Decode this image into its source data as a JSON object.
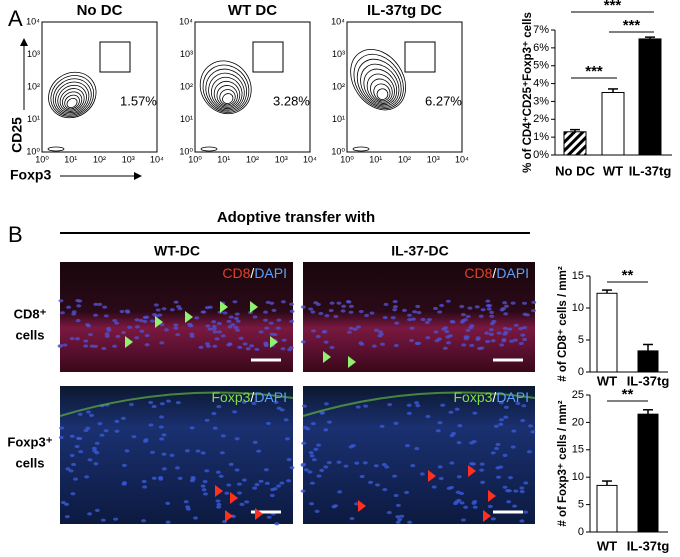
{
  "panel_a": {
    "letter": "A",
    "plots": [
      "No DC",
      "WT DC",
      "IL-37tg DC"
    ],
    "percents": [
      "1.57%",
      "3.28%",
      "6.27%"
    ],
    "y_axis": "CD25",
    "x_axis": "Foxp3",
    "ticks": [
      "10⁰",
      "10¹",
      "10²",
      "10³",
      "10⁴"
    ]
  },
  "panel_b": {
    "letter": "B",
    "heading": "Adoptive transfer with",
    "columns": [
      "WT-DC",
      "IL-37-DC"
    ],
    "rows": [
      [
        "CD8⁺",
        "cells"
      ],
      [
        "Foxp3⁺",
        "cells"
      ]
    ],
    "stains": [
      {
        "marker": "CD8",
        "slash": "/",
        "dapi": "DAPI"
      },
      {
        "marker": "Foxp3",
        "slash": "/",
        "dapi": "DAPI"
      }
    ]
  },
  "chart_data": [
    {
      "type": "bar",
      "ylabel": "% of CD4⁺CD25⁺Foxp3⁺ cells",
      "categories": [
        "No DC",
        "WT",
        "IL-37tg"
      ],
      "values": [
        1.3,
        3.5,
        6.5
      ],
      "errors": [
        0.12,
        0.2,
        0.1
      ],
      "bar_fills": [
        "hatched",
        "#ffffff",
        "#000000"
      ],
      "ylim": [
        0,
        7
      ],
      "yticks": [
        {
          "value": 0,
          "label": "0%"
        },
        {
          "value": 1,
          "label": "1%"
        },
        {
          "value": 2,
          "label": "2%"
        },
        {
          "value": 3,
          "label": "3%"
        },
        {
          "value": 4,
          "label": "4%"
        },
        {
          "value": 5,
          "label": "5%"
        },
        {
          "value": 6,
          "label": "6%"
        },
        {
          "value": 7,
          "label": "7%"
        }
      ],
      "significance": [
        {
          "pair": [
            0,
            2
          ],
          "label": "***"
        },
        {
          "pair": [
            1,
            2
          ],
          "label": "***"
        },
        {
          "pair": [
            0,
            1
          ],
          "label": "***"
        }
      ]
    },
    {
      "type": "bar",
      "ylabel": "# of CD8⁺ cells / mm²",
      "categories": [
        "WT",
        "IL-37tg"
      ],
      "values": [
        12.3,
        3.3
      ],
      "errors": [
        0.5,
        1.0
      ],
      "bar_fills": [
        "#ffffff",
        "#000000"
      ],
      "ylim": [
        0,
        15
      ],
      "yticks": [
        0,
        5,
        10,
        15
      ],
      "significance": [
        {
          "pair": [
            0,
            1
          ],
          "label": "**"
        }
      ]
    },
    {
      "type": "bar",
      "ylabel": "# of Foxp3⁺ cells / mm²",
      "categories": [
        "WT",
        "IL-37tg"
      ],
      "values": [
        8.5,
        21.5
      ],
      "errors": [
        0.8,
        0.8
      ],
      "bar_fills": [
        "#ffffff",
        "#000000"
      ],
      "ylim": [
        0,
        25
      ],
      "yticks": [
        0,
        5,
        10,
        15,
        20,
        25
      ],
      "significance": [
        {
          "pair": [
            0,
            1
          ],
          "label": "**"
        }
      ]
    }
  ]
}
